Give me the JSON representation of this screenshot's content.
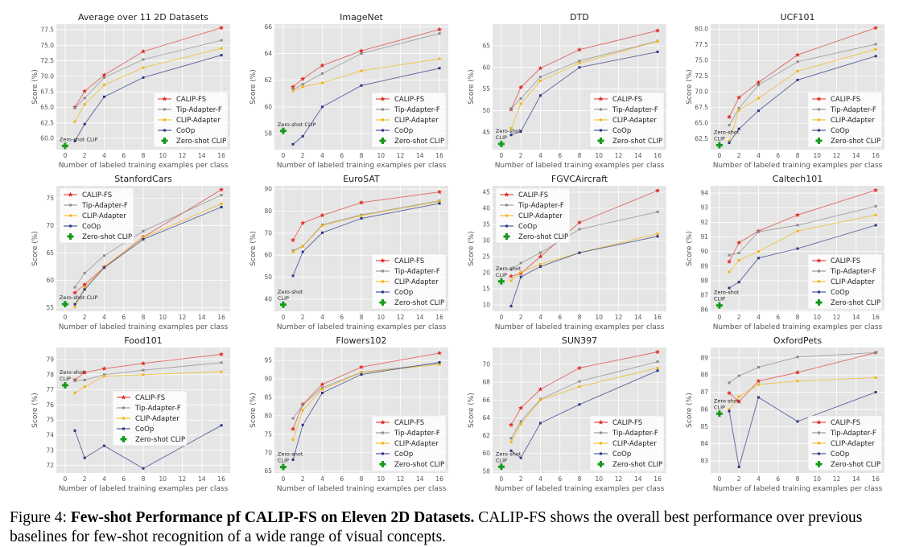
{
  "colors": {
    "calip": "#e0302a",
    "tip": "#8a8a8a",
    "clipadapter": "#f2b50f",
    "coop": "#2a3585",
    "zeroshot": "#139a1a",
    "bg": "#e5e5e5"
  },
  "legend_labels": [
    "CALIP-FS",
    "Tip-Adapter-F",
    "CLIP-Adapter",
    "CoOp",
    "Zero-shot CLIP"
  ],
  "marker_icons": [
    "star",
    "dot",
    "dot",
    "dot",
    "plus"
  ],
  "xlabel": "Number of labeled training examples per class",
  "ylabel": "Score (%)",
  "caption": {
    "prefix": "Figure 4: ",
    "bold": "Few-shot Performance pf CALIP-FS on Eleven 2D Datasets.",
    "rest": " CALIP-FS shows the overall best performance over previous baselines for few-shot recognition of a wide range of visual concepts."
  },
  "chart_data": [
    {
      "type": "line",
      "title": "Average over 11 2D Datasets",
      "x": [
        1,
        2,
        4,
        8,
        16
      ],
      "xticks": [
        0,
        2,
        4,
        6,
        8,
        10,
        12,
        14,
        16
      ],
      "xlim": [
        -0.9,
        16.9
      ],
      "ylim": [
        58.2,
        78.4
      ],
      "yticks": [
        "60.0",
        "62.5",
        "65.0",
        "67.5",
        "70.0",
        "72.5",
        "75.0",
        "77.5"
      ],
      "legend": "lower-right",
      "grid": true,
      "series": [
        {
          "name": "CALIP-FS",
          "values": [
            65.0,
            67.6,
            70.2,
            74.0,
            77.8
          ]
        },
        {
          "name": "Tip-Adapter-F",
          "values": [
            64.9,
            66.5,
            69.8,
            72.7,
            75.8
          ]
        },
        {
          "name": "CLIP-Adapter",
          "values": [
            62.7,
            65.5,
            68.6,
            71.4,
            74.5
          ]
        },
        {
          "name": "CoOp",
          "values": [
            59.6,
            62.3,
            66.7,
            69.8,
            73.4
          ]
        }
      ],
      "zeroshot": {
        "x": 0,
        "y": 58.8,
        "label": [
          "Zero-shot CLIP"
        ]
      }
    },
    {
      "type": "line",
      "title": "ImageNet",
      "x": [
        1,
        2,
        4,
        8,
        16
      ],
      "xticks": [
        0,
        2,
        4,
        6,
        8,
        10,
        12,
        14,
        16
      ],
      "xlim": [
        -0.9,
        16.9
      ],
      "ylim": [
        56.8,
        66.2
      ],
      "yticks": [
        "58",
        "60",
        "62",
        "64",
        "66"
      ],
      "legend": "lower-right",
      "grid": true,
      "series": [
        {
          "name": "CALIP-FS",
          "values": [
            61.5,
            62.1,
            63.1,
            64.2,
            65.8
          ]
        },
        {
          "name": "Tip-Adapter-F",
          "values": [
            61.3,
            61.7,
            62.5,
            64.0,
            65.5
          ]
        },
        {
          "name": "CLIP-Adapter",
          "values": [
            61.2,
            61.5,
            61.8,
            62.7,
            63.6
          ]
        },
        {
          "name": "CoOp",
          "values": [
            57.2,
            57.8,
            60.0,
            61.6,
            62.9
          ]
        }
      ],
      "zeroshot": {
        "x": 0,
        "y": 58.2,
        "label": [
          "Zero-shot CLIP"
        ]
      }
    },
    {
      "type": "line",
      "title": "DTD",
      "x": [
        1,
        2,
        4,
        8,
        16
      ],
      "xticks": [
        0,
        2,
        4,
        6,
        8,
        10,
        12,
        14,
        16
      ],
      "xlim": [
        -0.9,
        16.9
      ],
      "ylim": [
        41,
        70
      ],
      "yticks": [
        "45",
        "50",
        "55",
        "60",
        "65"
      ],
      "legend": "lower-right",
      "grid": true,
      "series": [
        {
          "name": "CALIP-FS",
          "values": [
            50.3,
            55.4,
            59.8,
            64.1,
            68.5
          ]
        },
        {
          "name": "Tip-Adapter-F",
          "values": [
            50.5,
            52.8,
            57.8,
            61.5,
            66.1
          ]
        },
        {
          "name": "CLIP-Adapter",
          "values": [
            45.9,
            51.6,
            56.9,
            61.0,
            66.0
          ]
        },
        {
          "name": "CoOp",
          "values": [
            44.4,
            45.2,
            53.5,
            60.0,
            63.6
          ]
        }
      ],
      "zeroshot": {
        "x": 0,
        "y": 42.3,
        "label": [
          "Zero-shot",
          "CLIP"
        ]
      }
    },
    {
      "type": "line",
      "title": "UCF101",
      "x": [
        1,
        2,
        4,
        8,
        16
      ],
      "xticks": [
        0,
        2,
        4,
        6,
        8,
        10,
        12,
        14,
        16
      ],
      "xlim": [
        -0.9,
        16.9
      ],
      "ylim": [
        60.8,
        80.8
      ],
      "yticks": [
        "62.5",
        "65.0",
        "67.5",
        "70.0",
        "72.5",
        "75.0",
        "77.5",
        "80.0"
      ],
      "legend": "lower-right",
      "grid": true,
      "series": [
        {
          "name": "CALIP-FS",
          "values": [
            66.0,
            69.1,
            71.5,
            75.9,
            80.2
          ]
        },
        {
          "name": "Tip-Adapter-F",
          "values": [
            64.7,
            67.4,
            71.1,
            74.8,
            77.6
          ]
        },
        {
          "name": "CLIP-Adapter",
          "values": [
            62.2,
            67.1,
            69.0,
            73.3,
            76.8
          ]
        },
        {
          "name": "CoOp",
          "values": [
            61.9,
            64.1,
            67.0,
            71.9,
            75.7
          ]
        }
      ],
      "zeroshot": {
        "x": 0,
        "y": 61.5,
        "label": [
          "Zero-shot",
          "CLIP"
        ]
      }
    },
    {
      "type": "line",
      "title": "StanfordCars",
      "x": [
        1,
        2,
        4,
        8,
        16
      ],
      "xticks": [
        0,
        2,
        4,
        6,
        8,
        10,
        12,
        14,
        16
      ],
      "xlim": [
        -0.9,
        16.9
      ],
      "ylim": [
        54.3,
        77.3
      ],
      "yticks": [
        "55",
        "60",
        "65",
        "70",
        "75"
      ],
      "legend": "upper-left",
      "grid": true,
      "series": [
        {
          "name": "CALIP-FS",
          "values": [
            57.7,
            59.2,
            62.4,
            67.9,
            76.6
          ]
        },
        {
          "name": "Tip-Adapter-F",
          "values": [
            58.7,
            61.3,
            64.5,
            69.0,
            75.6
          ]
        },
        {
          "name": "CLIP-Adapter",
          "values": [
            55.1,
            58.7,
            62.4,
            67.8,
            74.0
          ]
        },
        {
          "name": "CoOp",
          "values": [
            55.6,
            58.3,
            62.3,
            67.5,
            73.4
          ]
        }
      ],
      "zeroshot": {
        "x": 0,
        "y": 55.6,
        "label": [
          "Zero-shot CLIP"
        ]
      }
    },
    {
      "type": "line",
      "title": "EuroSAT",
      "x": [
        1,
        2,
        4,
        8,
        16
      ],
      "xticks": [
        0,
        2,
        4,
        6,
        8,
        10,
        12,
        14,
        16
      ],
      "xlim": [
        -0.9,
        16.9
      ],
      "ylim": [
        34.5,
        91.5
      ],
      "yticks": [
        "40",
        "50",
        "60",
        "70",
        "80",
        "90"
      ],
      "legend": "lower-right",
      "grid": true,
      "series": [
        {
          "name": "CALIP-FS",
          "values": [
            66.8,
            74.6,
            78.1,
            83.9,
            88.7
          ]
        },
        {
          "name": "Tip-Adapter-F",
          "values": [
            62.1,
            64.1,
            73.8,
            78.3,
            84.7
          ]
        },
        {
          "name": "CLIP-Adapter",
          "values": [
            61.5,
            64.0,
            73.4,
            77.9,
            84.4
          ]
        },
        {
          "name": "CoOp",
          "values": [
            50.6,
            61.5,
            70.2,
            76.7,
            83.5
          ]
        }
      ],
      "zeroshot": {
        "x": 0,
        "y": 37.5,
        "label": [
          "Zero-shot",
          "CLIP"
        ]
      }
    },
    {
      "type": "line",
      "title": "FGVCAircraft",
      "x": [
        1,
        2,
        4,
        8,
        16
      ],
      "xticks": [
        0,
        2,
        4,
        6,
        8,
        10,
        12,
        14,
        16
      ],
      "xlim": [
        -0.9,
        16.9
      ],
      "ylim": [
        8,
        47
      ],
      "yticks": [
        "10",
        "15",
        "20",
        "25",
        "30",
        "35",
        "40",
        "45"
      ],
      "legend": "upper-left",
      "grid": true,
      "series": [
        {
          "name": "CALIP-FS",
          "values": [
            18.9,
            19.8,
            25.0,
            35.6,
            45.5
          ]
        },
        {
          "name": "Tip-Adapter-F",
          "values": [
            21.0,
            23.0,
            26.2,
            33.5,
            38.9
          ]
        },
        {
          "name": "CLIP-Adapter",
          "values": [
            17.5,
            20.1,
            22.6,
            26.2,
            32.1
          ]
        },
        {
          "name": "CoOp",
          "values": [
            9.6,
            18.7,
            21.9,
            26.2,
            31.3
          ]
        }
      ],
      "zeroshot": {
        "x": 0,
        "y": 17.3,
        "label": [
          "Zero-shot",
          "CLIP"
        ]
      }
    },
    {
      "type": "line",
      "title": "Caltech101",
      "x": [
        1,
        2,
        4,
        8,
        16
      ],
      "xticks": [
        0,
        2,
        4,
        6,
        8,
        10,
        12,
        14,
        16
      ],
      "xlim": [
        -0.9,
        16.9
      ],
      "ylim": [
        85.9,
        94.5
      ],
      "yticks": [
        "86",
        "87",
        "88",
        "89",
        "90",
        "91",
        "92",
        "93",
        "94"
      ],
      "legend": "lower-right",
      "grid": true,
      "series": [
        {
          "name": "CALIP-FS",
          "values": [
            89.3,
            90.6,
            91.4,
            92.5,
            94.2
          ]
        },
        {
          "name": "Tip-Adapter-F",
          "values": [
            89.75,
            89.9,
            91.35,
            91.8,
            93.1
          ]
        },
        {
          "name": "CLIP-Adapter",
          "values": [
            88.6,
            89.4,
            90.0,
            91.4,
            92.5
          ]
        },
        {
          "name": "CoOp",
          "values": [
            87.5,
            87.9,
            89.55,
            90.2,
            91.8
          ]
        }
      ],
      "zeroshot": {
        "x": 0,
        "y": 86.3,
        "label": [
          "Zero-shot",
          "CLIP"
        ]
      }
    },
    {
      "type": "line",
      "title": "Food101",
      "x": [
        1,
        2,
        4,
        8,
        16
      ],
      "xticks": [
        0,
        2,
        4,
        6,
        8,
        10,
        12,
        14,
        16
      ],
      "xlim": [
        -0.9,
        16.9
      ],
      "ylim": [
        71.5,
        79.8
      ],
      "yticks": [
        "72",
        "73",
        "74",
        "75",
        "76",
        "77",
        "78",
        "79"
      ],
      "legend": "center",
      "grid": true,
      "series": [
        {
          "name": "CALIP-FS",
          "values": [
            77.65,
            78.15,
            78.4,
            78.75,
            79.35
          ]
        },
        {
          "name": "Tip-Adapter-F",
          "values": [
            77.6,
            77.65,
            78.0,
            78.3,
            78.8
          ]
        },
        {
          "name": "CLIP-Adapter",
          "values": [
            76.8,
            77.2,
            77.9,
            78.0,
            78.2
          ]
        },
        {
          "name": "CoOp",
          "values": [
            74.3,
            72.5,
            73.3,
            71.8,
            74.65
          ]
        }
      ],
      "zeroshot": {
        "x": 0,
        "y": 77.3,
        "label": [
          "Zero-shot",
          "CLIP"
        ]
      }
    },
    {
      "type": "line",
      "title": "Flowers102",
      "x": [
        1,
        2,
        4,
        8,
        16
      ],
      "xticks": [
        0,
        2,
        4,
        6,
        8,
        10,
        12,
        14,
        16
      ],
      "xlim": [
        -0.9,
        16.9
      ],
      "ylim": [
        64.5,
        98.5
      ],
      "yticks": [
        "65",
        "70",
        "75",
        "80",
        "85",
        "90",
        "95"
      ],
      "legend": "lower-right",
      "grid": true,
      "series": [
        {
          "name": "CALIP-FS",
          "values": [
            76.4,
            83.1,
            88.5,
            93.2,
            97.0
          ]
        },
        {
          "name": "Tip-Adapter-F",
          "values": [
            79.3,
            82.9,
            87.6,
            91.8,
            94.2
          ]
        },
        {
          "name": "CLIP-Adapter",
          "values": [
            73.5,
            81.5,
            87.2,
            91.7,
            93.9
          ]
        },
        {
          "name": "CoOp",
          "values": [
            68.1,
            77.5,
            86.2,
            91.2,
            94.5
          ]
        }
      ],
      "zeroshot": {
        "x": 0,
        "y": 66.1,
        "label": [
          "Zero-shot",
          "CLIP"
        ]
      }
    },
    {
      "type": "line",
      "title": "SUN397",
      "x": [
        1,
        2,
        4,
        8,
        16
      ],
      "xticks": [
        0,
        2,
        4,
        6,
        8,
        10,
        12,
        14,
        16
      ],
      "xlim": [
        -0.9,
        16.9
      ],
      "ylim": [
        57.8,
        71.9
      ],
      "yticks": [
        "58",
        "60",
        "62",
        "64",
        "66",
        "68",
        "70"
      ],
      "legend": "lower-right",
      "grid": true,
      "series": [
        {
          "name": "CALIP-FS",
          "values": [
            63.2,
            65.1,
            67.2,
            69.6,
            71.4
          ]
        },
        {
          "name": "Tip-Adapter-F",
          "values": [
            61.7,
            63.6,
            66.1,
            68.1,
            70.3
          ]
        },
        {
          "name": "CLIP-Adapter",
          "values": [
            61.3,
            63.3,
            66.0,
            67.5,
            69.6
          ]
        },
        {
          "name": "CoOp",
          "values": [
            60.3,
            59.5,
            63.4,
            65.5,
            69.3
          ]
        }
      ],
      "zeroshot": {
        "x": 0,
        "y": 58.5,
        "label": [
          "Zero-shot",
          "CLIP"
        ]
      }
    },
    {
      "type": "line",
      "title": "OxfordPets",
      "x": [
        1,
        2,
        4,
        8,
        16
      ],
      "xticks": [
        0,
        2,
        4,
        6,
        8,
        10,
        12,
        14,
        16
      ],
      "xlim": [
        -0.9,
        16.9
      ],
      "ylim": [
        82.3,
        89.6
      ],
      "yticks": [
        "83",
        "84",
        "85",
        "86",
        "87",
        "88",
        "89"
      ],
      "legend": "lower-right",
      "grid": true,
      "series": [
        {
          "name": "CALIP-FS",
          "values": [
            86.95,
            86.45,
            87.65,
            88.15,
            89.3
          ]
        },
        {
          "name": "Tip-Adapter-F",
          "values": [
            87.55,
            87.95,
            88.45,
            89.05,
            89.3
          ]
        },
        {
          "name": "CLIP-Adapter",
          "values": [
            86.0,
            86.75,
            87.45,
            87.65,
            87.85
          ]
        },
        {
          "name": "CoOp",
          "values": [
            85.9,
            82.65,
            86.7,
            85.3,
            87.0
          ]
        }
      ],
      "zeroshot": {
        "x": 0,
        "y": 85.75,
        "label": [
          "Zero-shot",
          "CLIP"
        ]
      }
    }
  ]
}
